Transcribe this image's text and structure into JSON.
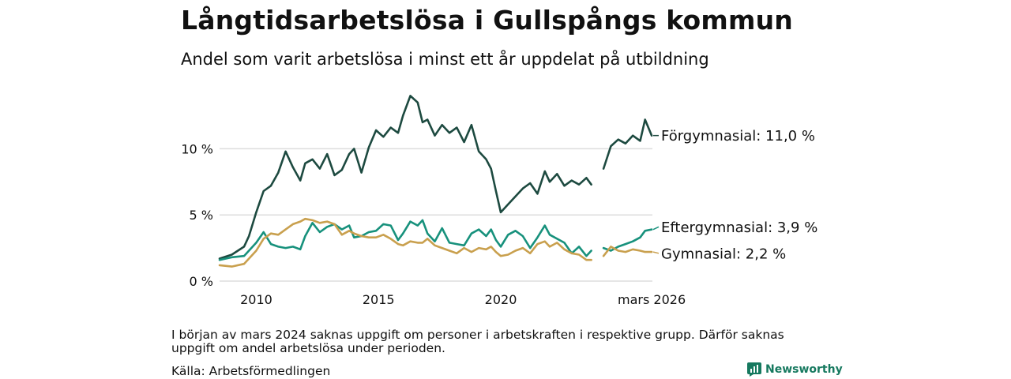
{
  "header": {
    "title": "Långtidsarbetslösa i Gullspångs kommun",
    "subtitle": "Andel som varit arbetslösa i minst ett år uppdelat på utbildning"
  },
  "footer": {
    "note": "I början av mars 2024 saknas uppgift om personer i arbetskraften i respektive grupp. Därför saknas uppgift om andel arbetslösa under perioden.",
    "source": "Källa: Arbetsförmedlingen",
    "logo_text": "Newsworthy"
  },
  "colors": {
    "forgymnasial": "#1d4a40",
    "eftergymnasial": "#17917c",
    "gymnasial": "#c9a04e",
    "grid": "#dddddd",
    "logo": "#16795f"
  },
  "chart_data": {
    "type": "line",
    "title": "Långtidsarbetslösa i Gullspångs kommun",
    "x_unit": "year",
    "xlim": [
      2008.5,
      2026.2
    ],
    "ylim": [
      0,
      14.5
    ],
    "y_ticks": [
      0,
      5,
      10
    ],
    "y_tick_labels": [
      "0 %",
      "5 %",
      "10 %"
    ],
    "x_ticks": [
      2010,
      2015,
      2020,
      2026.17
    ],
    "x_tick_labels": [
      "2010",
      "2015",
      "2020",
      "mars 2026"
    ],
    "gap": [
      2023.7,
      2024.2
    ],
    "series": [
      {
        "name": "Förgymnasial",
        "end_label": "Förgymnasial: 11,0 %",
        "x": [
          2008.5,
          2009,
          2009.5,
          2009.7,
          2010,
          2010.3,
          2010.6,
          2010.9,
          2011.2,
          2011.5,
          2011.8,
          2012,
          2012.3,
          2012.6,
          2012.9,
          2013.2,
          2013.5,
          2013.8,
          2014,
          2014.3,
          2014.6,
          2014.9,
          2015.2,
          2015.5,
          2015.8,
          2016,
          2016.3,
          2016.6,
          2016.8,
          2017,
          2017.3,
          2017.6,
          2017.9,
          2018.2,
          2018.5,
          2018.8,
          2019.1,
          2019.4,
          2019.6,
          2019.8,
          2020,
          2020.3,
          2020.6,
          2020.9,
          2021.2,
          2021.5,
          2021.8,
          2022,
          2022.3,
          2022.6,
          2022.9,
          2023.2,
          2023.5,
          2023.7,
          2024.2,
          2024.5,
          2024.8,
          2025.1,
          2025.4,
          2025.7,
          2025.9,
          2026.17
        ],
        "values": [
          1.7,
          2.0,
          2.6,
          3.4,
          5.2,
          6.8,
          7.2,
          8.2,
          9.8,
          8.6,
          7.6,
          8.9,
          9.2,
          8.5,
          9.6,
          8.0,
          8.4,
          9.6,
          10.0,
          8.2,
          10.1,
          11.4,
          10.9,
          11.6,
          11.2,
          12.5,
          14.0,
          13.5,
          12.0,
          12.2,
          11.0,
          11.8,
          11.2,
          11.6,
          10.5,
          11.8,
          9.8,
          9.2,
          8.5,
          6.8,
          5.2,
          5.8,
          6.4,
          7.0,
          7.4,
          6.6,
          8.3,
          7.5,
          8.1,
          7.2,
          7.6,
          7.3,
          7.8,
          7.3,
          8.5,
          10.2,
          10.7,
          10.4,
          11.0,
          10.6,
          12.2,
          11.0
        ]
      },
      {
        "name": "Eftergymnasial",
        "end_label": "Eftergymnasial:  3,9 %",
        "x": [
          2008.5,
          2009,
          2009.5,
          2010,
          2010.3,
          2010.6,
          2010.9,
          2011.2,
          2011.5,
          2011.8,
          2012,
          2012.3,
          2012.6,
          2012.9,
          2013.2,
          2013.5,
          2013.8,
          2014,
          2014.3,
          2014.6,
          2014.9,
          2015.2,
          2015.5,
          2015.8,
          2016,
          2016.3,
          2016.6,
          2016.8,
          2017,
          2017.3,
          2017.6,
          2017.9,
          2018.2,
          2018.5,
          2018.8,
          2019.1,
          2019.4,
          2019.6,
          2019.8,
          2020,
          2020.3,
          2020.6,
          2020.9,
          2021.2,
          2021.5,
          2021.8,
          2022,
          2022.3,
          2022.6,
          2022.9,
          2023.2,
          2023.5,
          2023.7,
          2024.2,
          2024.5,
          2024.8,
          2025.1,
          2025.4,
          2025.7,
          2025.9,
          2026.17
        ],
        "values": [
          1.6,
          1.8,
          1.9,
          2.9,
          3.7,
          2.8,
          2.6,
          2.5,
          2.6,
          2.4,
          3.4,
          4.4,
          3.7,
          4.1,
          4.3,
          3.9,
          4.2,
          3.3,
          3.4,
          3.7,
          3.8,
          4.3,
          4.2,
          3.1,
          3.6,
          4.5,
          4.2,
          4.6,
          3.6,
          3.0,
          4.0,
          2.9,
          2.8,
          2.7,
          3.6,
          3.9,
          3.4,
          3.9,
          3.1,
          2.6,
          3.5,
          3.8,
          3.4,
          2.5,
          3.3,
          4.2,
          3.5,
          3.2,
          2.9,
          2.1,
          2.6,
          1.9,
          2.3,
          2.5,
          2.3,
          2.6,
          2.8,
          3.0,
          3.3,
          3.8,
          3.9
        ]
      },
      {
        "name": "Gymnasial",
        "end_label": "Gymnasial:  2,2 %",
        "x": [
          2008.5,
          2009,
          2009.5,
          2010,
          2010.3,
          2010.6,
          2010.9,
          2011.2,
          2011.5,
          2011.8,
          2012,
          2012.3,
          2012.6,
          2012.9,
          2013.2,
          2013.5,
          2013.8,
          2014,
          2014.3,
          2014.6,
          2014.9,
          2015.2,
          2015.5,
          2015.8,
          2016,
          2016.3,
          2016.6,
          2016.8,
          2017,
          2017.3,
          2017.6,
          2017.9,
          2018.2,
          2018.5,
          2018.8,
          2019.1,
          2019.4,
          2019.6,
          2019.8,
          2020,
          2020.3,
          2020.6,
          2020.9,
          2021.2,
          2021.5,
          2021.8,
          2022,
          2022.3,
          2022.6,
          2022.9,
          2023.2,
          2023.5,
          2023.7,
          2024.2,
          2024.5,
          2024.8,
          2025.1,
          2025.4,
          2025.7,
          2025.9,
          2026.17
        ],
        "values": [
          1.2,
          1.1,
          1.3,
          2.3,
          3.2,
          3.6,
          3.5,
          3.9,
          4.3,
          4.5,
          4.7,
          4.6,
          4.4,
          4.5,
          4.3,
          3.5,
          3.8,
          3.6,
          3.4,
          3.3,
          3.3,
          3.5,
          3.2,
          2.8,
          2.7,
          3.0,
          2.9,
          2.9,
          3.2,
          2.7,
          2.5,
          2.3,
          2.1,
          2.5,
          2.2,
          2.5,
          2.4,
          2.6,
          2.2,
          1.9,
          2.0,
          2.3,
          2.5,
          2.1,
          2.8,
          3.0,
          2.6,
          2.9,
          2.4,
          2.1,
          2.0,
          1.6,
          1.6,
          1.9,
          2.6,
          2.3,
          2.2,
          2.4,
          2.3,
          2.2,
          2.2
        ]
      }
    ]
  }
}
